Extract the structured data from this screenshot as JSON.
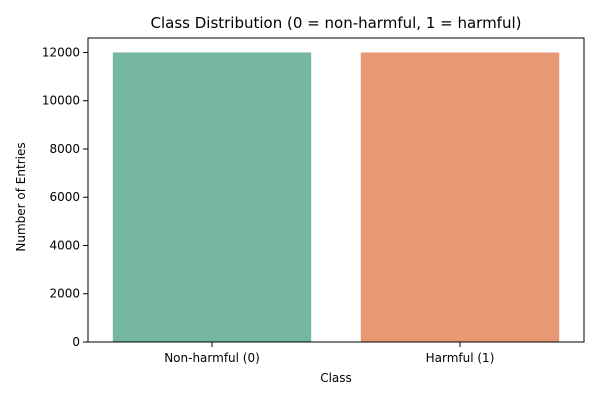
{
  "chart_data": {
    "type": "bar",
    "title": "Class Distribution (0 = non-harmful, 1 = harmful)",
    "xlabel": "Class",
    "ylabel": "Number of Entries",
    "categories": [
      "Non-harmful (0)",
      "Harmful (1)"
    ],
    "values": [
      12000,
      12000
    ],
    "colors": [
      "#74b6a1",
      "#e99874"
    ],
    "ylim": [
      0,
      12600
    ],
    "yticks": [
      0,
      2000,
      4000,
      6000,
      8000,
      10000,
      12000
    ],
    "ytick_labels": [
      "0",
      "2000",
      "4000",
      "6000",
      "8000",
      "10000",
      "12000"
    ],
    "grid": false,
    "legend": "none"
  }
}
